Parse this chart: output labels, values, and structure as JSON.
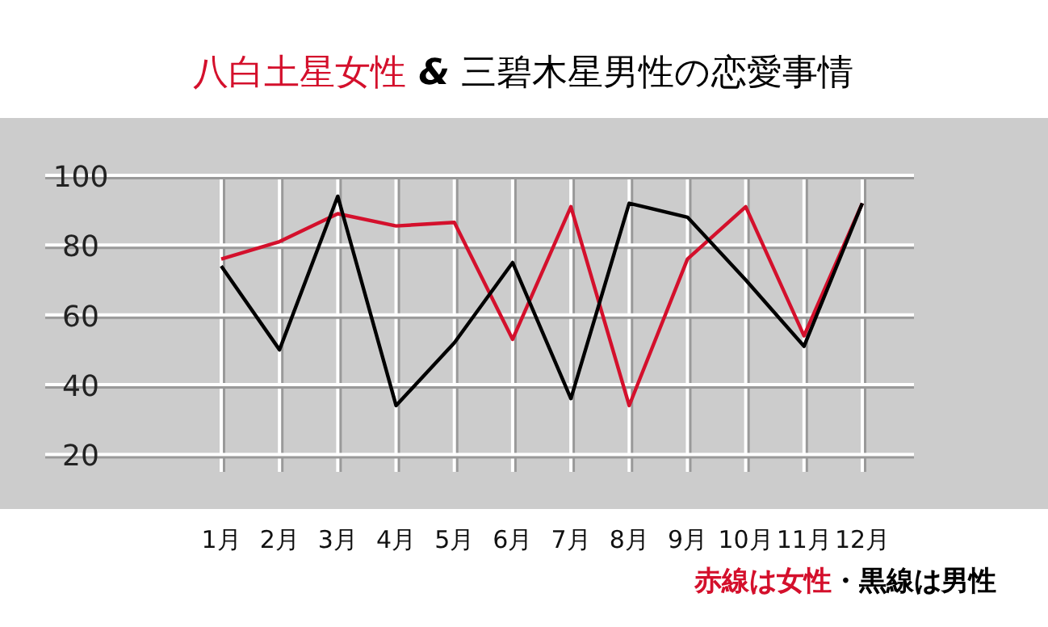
{
  "chart_data": {
    "type": "line",
    "title": "八白土星女性 & 三碧木星男性の恋愛事情",
    "categories": [
      "1月",
      "2月",
      "3月",
      "4月",
      "5月",
      "6月",
      "7月",
      "8月",
      "9月",
      "10月",
      "11月",
      "12月"
    ],
    "series": [
      {
        "color": "#d4102c",
        "values": [
          76,
          81,
          89,
          85.5,
          86.5,
          53,
          91,
          34,
          76,
          91,
          54,
          92
        ]
      },
      {
        "color": "#000000",
        "values": [
          74,
          50,
          94,
          34,
          52,
          75,
          36,
          92,
          88,
          70,
          51,
          92
        ]
      }
    ],
    "ylim": [
      15,
      100
    ],
    "yticks": [
      20,
      40,
      60,
      80,
      100
    ],
    "grid": true,
    "marker": "none",
    "line_style": "solid",
    "annotations": [
      "赤線は女性",
      "・黒線は男性"
    ]
  }
}
